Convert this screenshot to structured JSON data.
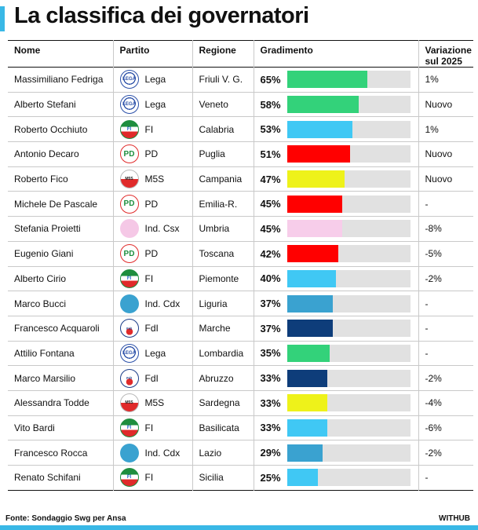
{
  "title": "La classifica dei governatori",
  "columns": [
    "Nome",
    "Partito",
    "Regione",
    "Gradimento",
    "Variazione sul 2025"
  ],
  "parties": {
    "Lega": {
      "icon": "lega-logo-icon",
      "color": "#2a4fa8"
    },
    "FI": {
      "icon": "forza-italia-logo-icon",
      "color": "#1e8e3e"
    },
    "PD": {
      "icon": "pd-logo-icon",
      "color": "#e02a2a"
    },
    "M5S": {
      "icon": "m5s-logo-icon",
      "color": "#ffffff"
    },
    "FdI": {
      "icon": "fdi-logo-icon",
      "color": "#1a3c88"
    },
    "Ind. Csx": {
      "icon": "pink-dot-icon",
      "color": "#f5c8e6"
    },
    "Ind. Cdx": {
      "icon": "blue-dot-icon",
      "color": "#3aa2d0"
    }
  },
  "logo_text": {
    "lega": "LEGA",
    "fi": "FI",
    "pd": "PD",
    "m5s": "M5S",
    "fdi": "FdI"
  },
  "chart_data": {
    "type": "bar",
    "xlabel": "",
    "ylabel": "Gradimento",
    "ylim": [
      0,
      100
    ],
    "categories": [
      "Massimiliano Fedriga",
      "Alberto Stefani",
      "Roberto Occhiuto",
      "Antonio Decaro",
      "Roberto Fico",
      "Michele De Pascale",
      "Stefania Proietti",
      "Eugenio Giani",
      "Alberto Cirio",
      "Marco Bucci",
      "Francesco Acquaroli",
      "Attilio Fontana",
      "Marco Marsilio",
      "Alessandra Todde",
      "Vito Bardi",
      "Francesco Rocca",
      "Renato Schifani"
    ],
    "values": [
      65,
      58,
      53,
      51,
      47,
      45,
      45,
      42,
      40,
      37,
      37,
      35,
      33,
      33,
      33,
      29,
      25
    ],
    "rows": [
      {
        "nome": "Massimiliano Fedriga",
        "partito": "Lega",
        "regione": "Friuli V. G.",
        "gradimento": 65,
        "gradimento_label": "65%",
        "variazione": "1%",
        "color": "#33d27a"
      },
      {
        "nome": "Alberto Stefani",
        "partito": "Lega",
        "regione": "Veneto",
        "gradimento": 58,
        "gradimento_label": "58%",
        "variazione": "Nuovo",
        "color": "#33d27a"
      },
      {
        "nome": "Roberto Occhiuto",
        "partito": "FI",
        "regione": "Calabria",
        "gradimento": 53,
        "gradimento_label": "53%",
        "variazione": "1%",
        "color": "#40c8f4"
      },
      {
        "nome": "Antonio Decaro",
        "partito": "PD",
        "regione": "Puglia",
        "gradimento": 51,
        "gradimento_label": "51%",
        "variazione": "Nuovo",
        "color": "#ff0000"
      },
      {
        "nome": "Roberto Fico",
        "partito": "M5S",
        "regione": "Campania",
        "gradimento": 47,
        "gradimento_label": "47%",
        "variazione": "Nuovo",
        "color": "#eef21a"
      },
      {
        "nome": "Michele De Pascale",
        "partito": "PD",
        "regione": "Emilia-R.",
        "gradimento": 45,
        "gradimento_label": "45%",
        "variazione": "-",
        "color": "#ff0000"
      },
      {
        "nome": "Stefania Proietti",
        "partito": "Ind. Csx",
        "regione": "Umbria",
        "gradimento": 45,
        "gradimento_label": "45%",
        "variazione": "-8%",
        "color": "#f7cdea"
      },
      {
        "nome": "Eugenio Giani",
        "partito": "PD",
        "regione": "Toscana",
        "gradimento": 42,
        "gradimento_label": "42%",
        "variazione": "-5%",
        "color": "#ff0000"
      },
      {
        "nome": "Alberto Cirio",
        "partito": "FI",
        "regione": "Piemonte",
        "gradimento": 40,
        "gradimento_label": "40%",
        "variazione": "-2%",
        "color": "#40c8f4"
      },
      {
        "nome": "Marco Bucci",
        "partito": "Ind. Cdx",
        "regione": "Liguria",
        "gradimento": 37,
        "gradimento_label": "37%",
        "variazione": "-",
        "color": "#3aa2d0"
      },
      {
        "nome": "Francesco Acquaroli",
        "partito": "FdI",
        "regione": "Marche",
        "gradimento": 37,
        "gradimento_label": "37%",
        "variazione": "-",
        "color": "#0e3d7a"
      },
      {
        "nome": "Attilio Fontana",
        "partito": "Lega",
        "regione": "Lombardia",
        "gradimento": 35,
        "gradimento_label": "35%",
        "variazione": "-",
        "color": "#33d27a"
      },
      {
        "nome": "Marco Marsilio",
        "partito": "FdI",
        "regione": "Abruzzo",
        "gradimento": 33,
        "gradimento_label": "33%",
        "variazione": "-2%",
        "color": "#0e3d7a"
      },
      {
        "nome": "Alessandra Todde",
        "partito": "M5S",
        "regione": "Sardegna",
        "gradimento": 33,
        "gradimento_label": "33%",
        "variazione": "-4%",
        "color": "#eef21a"
      },
      {
        "nome": "Vito Bardi",
        "partito": "FI",
        "regione": "Basilicata",
        "gradimento": 33,
        "gradimento_label": "33%",
        "variazione": "-6%",
        "color": "#40c8f4"
      },
      {
        "nome": "Francesco Rocca",
        "partito": "Ind. Cdx",
        "regione": "Lazio",
        "gradimento": 29,
        "gradimento_label": "29%",
        "variazione": "-2%",
        "color": "#3aa2d0"
      },
      {
        "nome": "Renato Schifani",
        "partito": "FI",
        "regione": "Sicilia",
        "gradimento": 25,
        "gradimento_label": "25%",
        "variazione": "-",
        "color": "#40c8f4"
      }
    ]
  },
  "footer": {
    "source": "Fonte: Sondaggio Swg per Ansa",
    "brand": "WITHUB"
  }
}
